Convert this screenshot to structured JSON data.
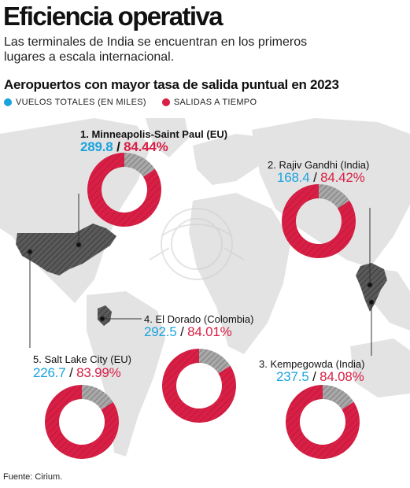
{
  "header": {
    "title": "Eficiencia operativa",
    "subtitle": "Las terminales de India se encuentran en los primeros lugares a escala internacional."
  },
  "chart_data": {
    "type": "pie",
    "title": "Aeropuertos con mayor tasa de salida puntual en 2023",
    "legend": [
      {
        "label": "VUELOS TOTALES (EN MILES)",
        "color": "#1aa3dd"
      },
      {
        "label": "SALIDAS A TIEMPO",
        "color": "#d81f45"
      }
    ],
    "airports": [
      {
        "label": "1. Minneapolis-Saint Paul (EU)",
        "flights": "289.8",
        "on_time_label": "84.44%",
        "on_time": 84.44
      },
      {
        "label": "2. Rajiv Gandhi (India)",
        "flights": "168.4",
        "on_time_label": "84.42%",
        "on_time": 84.42
      },
      {
        "label": "3. Kempegowda (India)",
        "flights": "237.5",
        "on_time_label": "84.08%",
        "on_time": 84.08
      },
      {
        "label": "4. El Dorado (Colombia)",
        "flights": "292.5",
        "on_time_label": "84.01%",
        "on_time": 84.01
      },
      {
        "label": "5. Salt Lake City (EU)",
        "flights": "226.7",
        "on_time_label": "83.99%",
        "on_time": 83.99
      }
    ],
    "colors": {
      "on_time": "#d81f45",
      "remainder": "#a8a8a8",
      "map": "#e3e3e3",
      "highlight": "#4d4d4d"
    }
  },
  "footer": {
    "source": "Fuente: Cirium."
  }
}
